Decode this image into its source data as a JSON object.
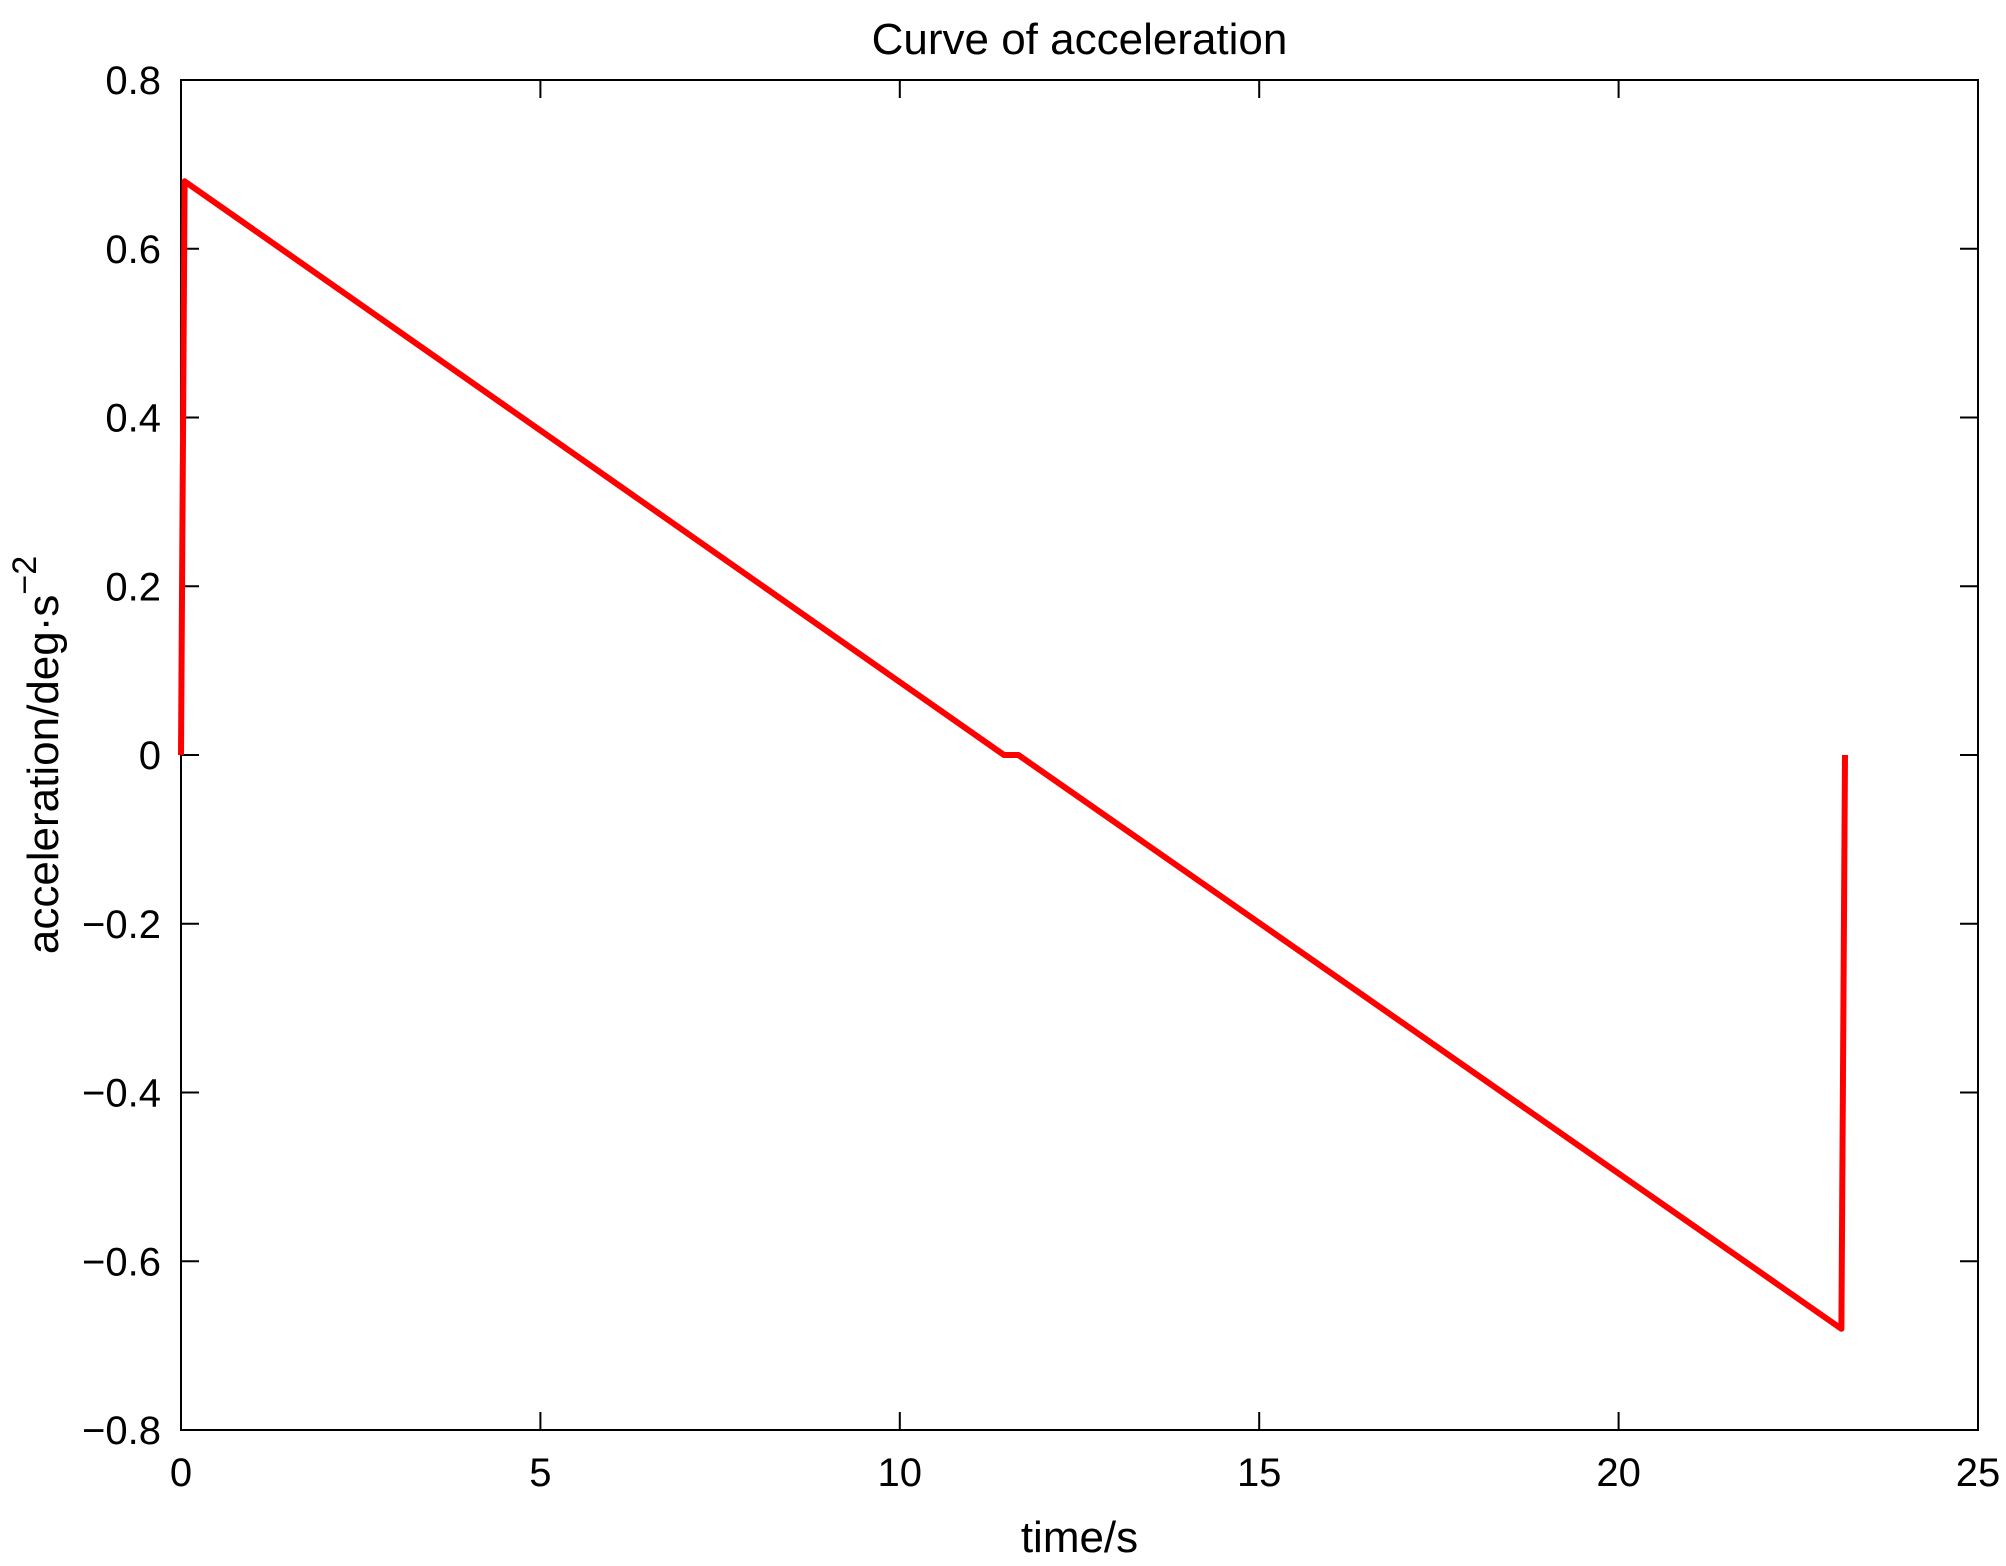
{
  "chart_data": {
    "type": "line",
    "title": "Curve of acceleration",
    "xlabel": "time/s",
    "ylabel": {
      "text": "acceleration/deg·s",
      "superscript": "−2"
    },
    "xlim": [
      0,
      25
    ],
    "ylim": [
      -0.8,
      0.8
    ],
    "xticks": [
      0,
      5,
      10,
      15,
      20,
      25
    ],
    "xtick_labels": [
      "0",
      "5",
      "10",
      "15",
      "20",
      "25"
    ],
    "yticks": [
      -0.8,
      -0.6,
      -0.4,
      -0.2,
      0,
      0.2,
      0.4,
      0.6,
      0.8
    ],
    "ytick_labels": [
      "−0.8",
      "−0.6",
      "−0.4",
      "−0.2",
      "0",
      "0.2",
      "0.4",
      "0.6",
      "0.8"
    ],
    "grid": false,
    "series": [
      {
        "color": "#ff0000",
        "x": [
          0,
          0.05,
          11.45,
          11.65,
          23.1,
          23.15
        ],
        "y": [
          0,
          0.68,
          0,
          0,
          -0.68,
          0
        ]
      }
    ]
  }
}
